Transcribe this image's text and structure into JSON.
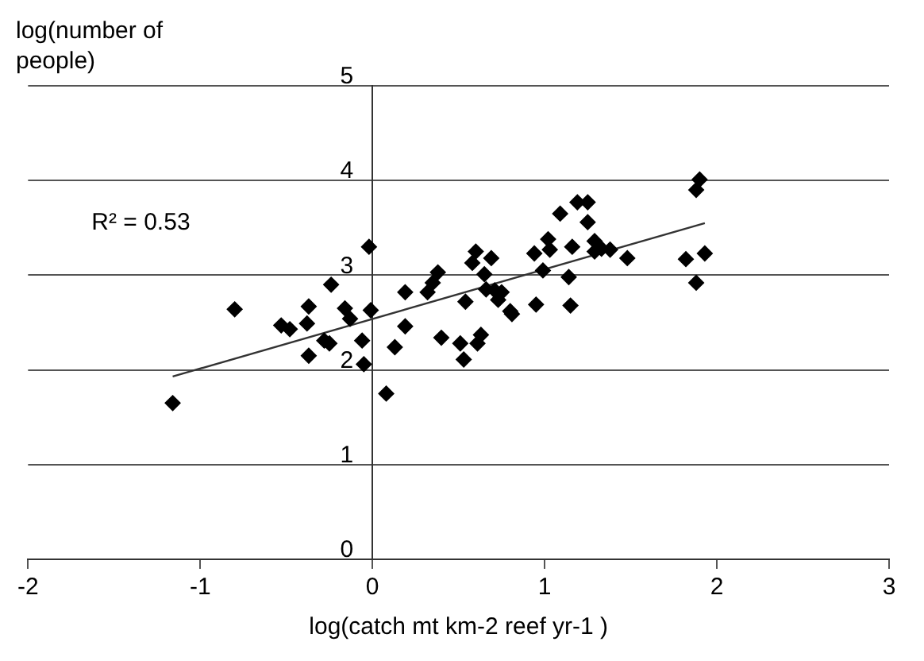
{
  "chart_data": {
    "type": "scatter",
    "xlabel": "log(catch mt km-2 reef yr-1 )",
    "ylabel": "log(number of people)",
    "annotations": [
      "R² = 0.53"
    ],
    "xlim": [
      -2,
      3
    ],
    "ylim": [
      0,
      5
    ],
    "xticks": [
      -2,
      -1,
      0,
      1,
      2,
      3
    ],
    "yticks": [
      0,
      1,
      2,
      3,
      4,
      5
    ],
    "grid": "y",
    "legend": false,
    "series": [
      {
        "type": "scatter",
        "marker": "diamond",
        "color": "#000000",
        "x": [
          -1.16,
          -0.8,
          -0.53,
          -0.48,
          -0.38,
          -0.37,
          -0.37,
          -0.28,
          -0.24,
          -0.25,
          -0.16,
          -0.13,
          -0.06,
          -0.05,
          -0.02,
          -0.01,
          0.08,
          0.13,
          0.19,
          0.19,
          0.32,
          0.35,
          0.38,
          0.4,
          0.51,
          0.54,
          0.53,
          0.58,
          0.6,
          0.61,
          0.63,
          0.65,
          0.66,
          0.69,
          0.71,
          0.73,
          0.75,
          0.8,
          0.81,
          0.94,
          0.95,
          0.99,
          1.02,
          1.03,
          1.09,
          1.14,
          1.15,
          1.16,
          1.19,
          1.25,
          1.25,
          1.29,
          1.29,
          1.33,
          1.38,
          1.48,
          1.82,
          1.88,
          1.88,
          1.9,
          1.93
        ],
        "values": [
          1.65,
          2.64,
          2.47,
          2.43,
          2.49,
          2.67,
          2.15,
          2.31,
          2.9,
          2.28,
          2.65,
          2.54,
          2.31,
          2.06,
          3.3,
          2.63,
          1.75,
          2.24,
          2.82,
          2.46,
          2.82,
          2.92,
          3.03,
          2.34,
          2.28,
          2.72,
          2.11,
          3.13,
          3.25,
          2.28,
          2.37,
          3.01,
          2.85,
          3.18,
          2.84,
          2.74,
          2.82,
          2.62,
          2.59,
          3.23,
          2.69,
          3.05,
          3.38,
          3.27,
          3.65,
          2.98,
          2.68,
          3.3,
          3.77,
          3.77,
          3.56,
          3.36,
          3.25,
          3.28,
          3.27,
          3.18,
          3.17,
          2.92,
          3.9,
          4.01,
          3.23
        ]
      },
      {
        "type": "line",
        "color": "#333333",
        "line_style": "solid",
        "x": [
          -1.16,
          1.93
        ],
        "values": [
          1.93,
          3.55
        ]
      }
    ]
  }
}
